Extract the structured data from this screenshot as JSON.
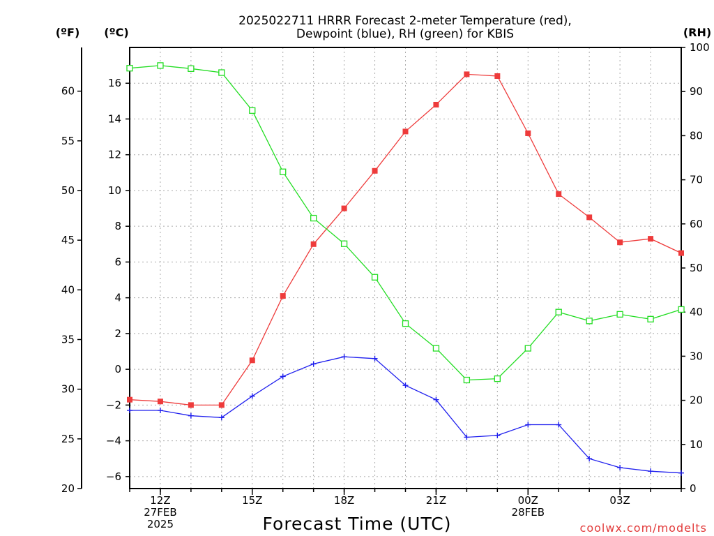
{
  "chart_data": {
    "type": "line",
    "title_lines": [
      "2025022711 HRRR Forecast 2-meter Temperature (red),",
      "Dewpoint (blue), RH (green) for KBIS"
    ],
    "xlabel": "Forecast Time (UTC)",
    "x_hours": [
      11,
      12,
      13,
      14,
      15,
      16,
      17,
      18,
      19,
      20,
      21,
      22,
      23,
      24,
      25,
      26,
      27,
      28,
      29
    ],
    "x_range": [
      11,
      29
    ],
    "x_ticks": [
      {
        "hour": 12,
        "lines": [
          "12Z",
          "27FEB",
          "2025"
        ]
      },
      {
        "hour": 15,
        "lines": [
          "15Z"
        ]
      },
      {
        "hour": 18,
        "lines": [
          "18Z"
        ]
      },
      {
        "hour": 21,
        "lines": [
          "21Z"
        ]
      },
      {
        "hour": 24,
        "lines": [
          "00Z",
          "28FEB"
        ]
      },
      {
        "hour": 27,
        "lines": [
          "03Z"
        ]
      }
    ],
    "axes": {
      "fahrenheit": {
        "unit_label": "(ºF)",
        "range": [
          20,
          64.4
        ],
        "ticks": [
          20,
          25,
          30,
          35,
          40,
          45,
          50,
          55,
          60
        ]
      },
      "celsius": {
        "unit_label": "(ºC)",
        "range": [
          -6.67,
          18
        ],
        "ticks": [
          -6,
          -4,
          -2,
          0,
          2,
          4,
          6,
          8,
          10,
          12,
          14,
          16
        ]
      },
      "rh": {
        "unit_label": "(RH)",
        "range": [
          0,
          100
        ],
        "ticks": [
          0,
          10,
          20,
          30,
          40,
          50,
          60,
          70,
          80,
          90,
          100
        ]
      }
    },
    "grid": true,
    "series": [
      {
        "name": "Temperature",
        "axis": "celsius",
        "color": "#ee3b3b",
        "marker": "filled-square",
        "values": [
          -1.7,
          -1.8,
          -2.0,
          -2.0,
          0.5,
          4.1,
          7.0,
          9.0,
          11.1,
          13.3,
          14.8,
          16.5,
          16.4,
          13.2,
          9.8,
          8.5,
          7.1,
          7.3,
          6.5
        ]
      },
      {
        "name": "Dewpoint",
        "axis": "celsius",
        "color": "#1f1fee",
        "marker": "plus",
        "values": [
          -2.3,
          -2.3,
          -2.6,
          -2.7,
          -1.5,
          -0.4,
          0.3,
          0.7,
          0.6,
          -0.9,
          -1.7,
          -3.8,
          -3.7,
          -3.1,
          -3.1,
          -5.0,
          -5.5,
          -5.7,
          -5.8
        ]
      },
      {
        "name": "RH",
        "axis": "rh",
        "color": "#22dd22",
        "marker": "open-square",
        "values": [
          95.3,
          95.9,
          95.2,
          94.3,
          85.7,
          71.8,
          61.3,
          55.5,
          47.9,
          37.4,
          31.8,
          24.6,
          24.9,
          31.8,
          40.0,
          38.0,
          39.5,
          38.4,
          40.6
        ]
      }
    ],
    "watermark": "coolwx.com/modelts"
  }
}
